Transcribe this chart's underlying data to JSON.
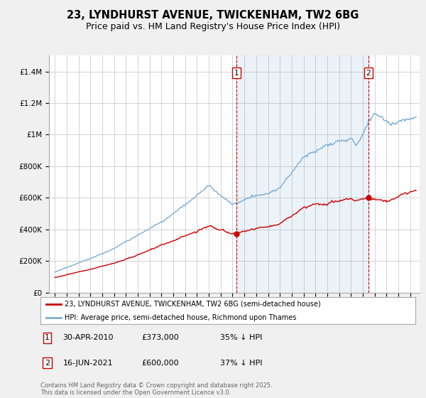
{
  "title": "23, LYNDHURST AVENUE, TWICKENHAM, TW2 6BG",
  "subtitle": "Price paid vs. HM Land Registry's House Price Index (HPI)",
  "title_fontsize": 10.5,
  "subtitle_fontsize": 9,
  "bg_color": "#f0f0f0",
  "plot_bg_color": "#ffffff",
  "red_color": "#cc0000",
  "blue_color": "#7aadd4",
  "blue_fill_color": "#ddeeff",
  "vline_color": "#cc0000",
  "grid_color": "#cccccc",
  "ylim": [
    0,
    1500000
  ],
  "yticks": [
    0,
    200000,
    400000,
    600000,
    800000,
    1000000,
    1200000,
    1400000
  ],
  "ytick_labels": [
    "£0",
    "£200K",
    "£400K",
    "£600K",
    "£800K",
    "£1M",
    "£1.2M",
    "£1.4M"
  ],
  "sale1_x": 2010.33,
  "sale1_y": 373000,
  "sale2_x": 2021.46,
  "sale2_y": 600000,
  "legend_line1": "23, LYNDHURST AVENUE, TWICKENHAM, TW2 6BG (semi-detached house)",
  "legend_line2": "HPI: Average price, semi-detached house, Richmond upon Thames",
  "footer": "Contains HM Land Registry data © Crown copyright and database right 2025.\nThis data is licensed under the Open Government Licence v3.0.",
  "xmin": 1994.5,
  "xmax": 2025.8
}
